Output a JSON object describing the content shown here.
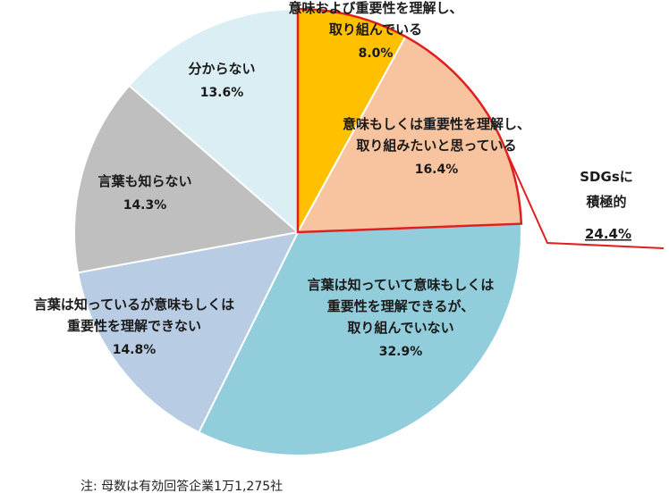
{
  "chart_data": {
    "type": "pie",
    "slices": [
      {
        "lines": [
          "意味および重要性を理解し、",
          "取り組んでいる"
        ],
        "value": 8.0,
        "label": "8.0%",
        "color": "#FFC000"
      },
      {
        "lines": [
          "意味もしくは重要性を理解し、",
          "取り組みたいと思っている"
        ],
        "value": 16.4,
        "label": "16.4%",
        "color": "#F8C4A0"
      },
      {
        "lines": [
          "言葉は知っていて意味もしくは",
          "重要性を理解できるが、",
          "取り組んでいない"
        ],
        "value": 32.9,
        "label": "32.9%",
        "color": "#92CDDC"
      },
      {
        "lines": [
          "言葉は知っているが意味もしくは",
          "重要性を理解できない"
        ],
        "value": 14.8,
        "label": "14.8%",
        "color": "#B8CCE4"
      },
      {
        "lines": [
          "言葉も知らない"
        ],
        "value": 14.3,
        "label": "14.3%",
        "color": "#BFBFBF"
      },
      {
        "lines": [
          "分からない"
        ],
        "value": 13.6,
        "label": "13.6%",
        "color": "#DAEEF3"
      }
    ],
    "callout": {
      "lines": [
        "SDGsに",
        "積極的"
      ],
      "value_label": "24.4%",
      "color": "#E0201E"
    }
  },
  "note": "注: 母数は有効回答企業1万1,275社"
}
